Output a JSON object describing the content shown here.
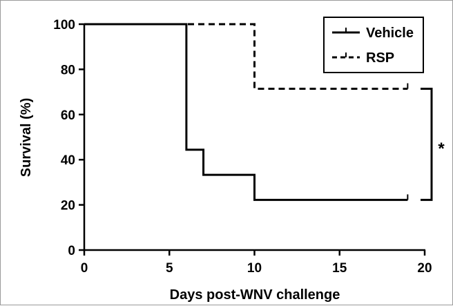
{
  "chart_data": {
    "type": "line",
    "xlabel": "Days post-WNV challenge",
    "ylabel": "Survival (%)",
    "xlim": [
      0,
      20
    ],
    "ylim": [
      0,
      100
    ],
    "x_ticks": [
      "0",
      "5",
      "10",
      "15",
      "20"
    ],
    "y_ticks": [
      "0",
      "20",
      "40",
      "60",
      "80",
      "100"
    ],
    "grid": false,
    "legend_position": "top-right",
    "series": [
      {
        "name": "Vehicle",
        "style": "solid",
        "step": true,
        "x": [
          0,
          6,
          7,
          10,
          19
        ],
        "y": [
          100,
          44.4,
          33.3,
          22.2,
          22.2
        ],
        "censored": [
          [
            19,
            22.2
          ]
        ]
      },
      {
        "name": "RSP",
        "style": "dashed",
        "step": true,
        "x": [
          0,
          10,
          19
        ],
        "y": [
          100,
          71.4,
          71.4
        ],
        "censored": [
          [
            19,
            71.4
          ]
        ]
      }
    ],
    "annotation": {
      "text": "*",
      "y_range": [
        22.2,
        71.4
      ]
    },
    "colors": {
      "line": "#000000",
      "frame": "#9a9a9a"
    }
  }
}
